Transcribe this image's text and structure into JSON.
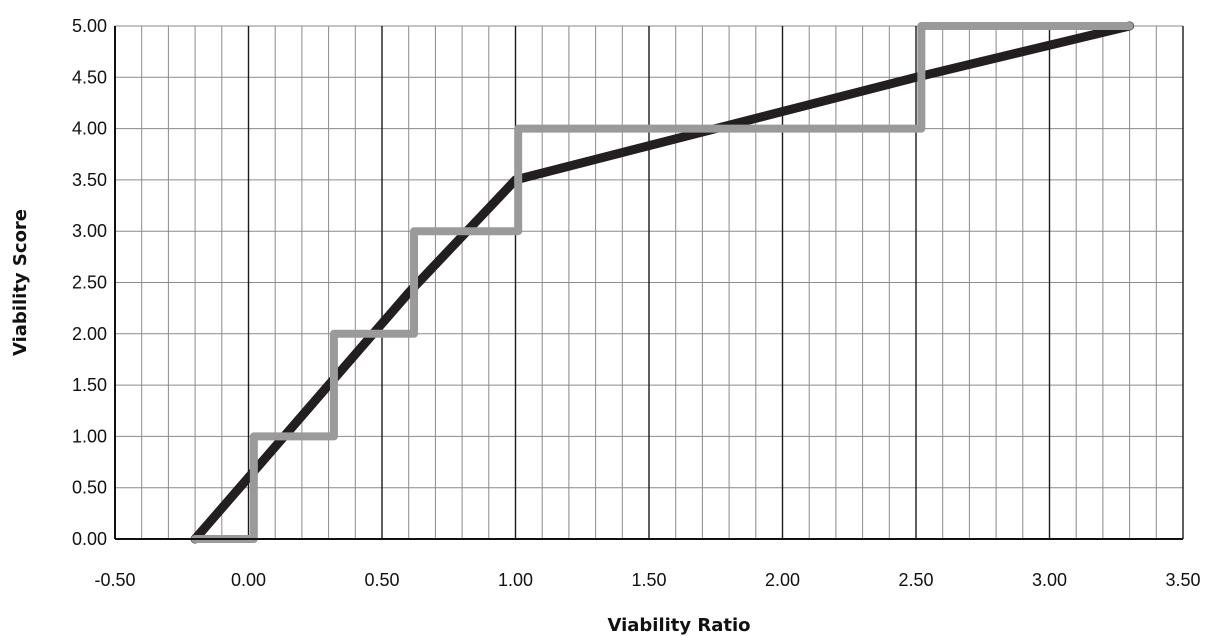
{
  "chart_data": {
    "type": "line",
    "title": "",
    "xlabel": "Viability Ratio",
    "ylabel": "Viability Score",
    "xlim": [
      -0.5,
      3.5
    ],
    "ylim": [
      0,
      5
    ],
    "x_ticks": [
      -0.5,
      0,
      0.5,
      1,
      1.5,
      2,
      2.5,
      3,
      3.5
    ],
    "x_tick_labels": [
      "-0.50",
      "0.00",
      "0.50",
      "1.00",
      "1.50",
      "2.00",
      "2.50",
      "3.00",
      "3.50"
    ],
    "y_ticks": [
      0,
      0.5,
      1,
      1.5,
      2,
      2.5,
      3,
      3.5,
      4,
      4.5,
      5
    ],
    "y_tick_labels": [
      "0.00",
      "0.50",
      "1.00",
      "1.50",
      "2.00",
      "2.50",
      "3.00",
      "3.50",
      "4.00",
      "4.50",
      "5.00"
    ],
    "grid": true,
    "minor_grid_step_x": 0.1,
    "minor_grid_step_y": 0.5,
    "legend": "none",
    "series": [
      {
        "style": "continuous",
        "color": "#231f20",
        "points": [
          [
            -0.2,
            0.0
          ],
          [
            0.0,
            0.6
          ],
          [
            0.2,
            1.2
          ],
          [
            0.3,
            1.5
          ],
          [
            0.6,
            2.4
          ],
          [
            1.0,
            3.5
          ],
          [
            2.5,
            4.5
          ],
          [
            3.3,
            5.0
          ]
        ]
      },
      {
        "style": "step",
        "color": "#9a9a9a",
        "points": [
          [
            -0.2,
            0.0
          ],
          [
            0.02,
            0.0
          ],
          [
            0.02,
            1.0
          ],
          [
            0.32,
            1.0
          ],
          [
            0.32,
            2.0
          ],
          [
            0.62,
            2.0
          ],
          [
            0.62,
            3.0
          ],
          [
            1.01,
            3.0
          ],
          [
            1.01,
            4.0
          ],
          [
            2.52,
            4.0
          ],
          [
            2.52,
            5.0
          ],
          [
            3.3,
            5.0
          ]
        ]
      }
    ]
  }
}
